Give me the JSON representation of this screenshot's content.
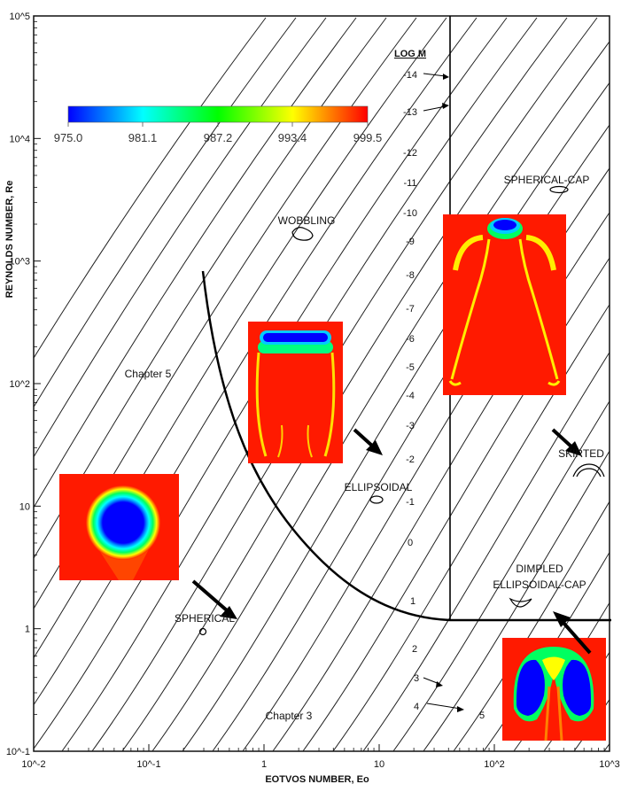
{
  "chart_data": {
    "type": "line",
    "xlabel": "EOTVOS NUMBER, Eo",
    "ylabel": "REYNOLDS NUMBER, Re",
    "x_scale": "log",
    "y_scale": "log",
    "xlim": [
      0.01,
      1000
    ],
    "ylim": [
      0.1,
      100000
    ],
    "x_tick_labels": [
      "10^-2",
      "10^-1",
      "1",
      "10",
      "10^2",
      "10^3"
    ],
    "y_tick_labels": [
      "10^-1",
      "1",
      "10",
      "10^2",
      "10^3",
      "10^4",
      "10^5"
    ],
    "log_m_header": "LOG M",
    "log_m_labels": [
      "-14",
      "-13",
      "-12",
      "-11",
      "-10",
      "-9",
      "-8",
      "-7",
      "-6",
      "-5",
      "-4",
      "-3",
      "-2",
      "-1",
      "0",
      "1",
      "2",
      "3",
      "4",
      "5"
    ],
    "regime_labels": [
      "SPHERICAL-CAP",
      "WOBBLING",
      "SKIRTED",
      "ELLIPSOIDAL",
      "DIMPLED",
      "ELLIPSOIDAL-CAP",
      "SPHERICAL",
      "Chapter 5",
      "Chapter 3"
    ],
    "colorbar": {
      "ticks": [
        "975.0",
        "981.1",
        "987.2",
        "993.4",
        "999.5"
      ],
      "colors": [
        "#0000ff",
        "#00ffff",
        "#00ff00",
        "#ffff00",
        "#ff0000"
      ]
    },
    "boundaries": {
      "curved": [
        [
          0.4,
          800
        ],
        [
          0.6,
          90
        ],
        [
          1,
          25
        ],
        [
          2,
          6
        ],
        [
          5,
          2
        ],
        [
          10,
          1.5
        ],
        [
          30,
          1.25
        ],
        [
          40,
          1.2
        ],
        [
          1000,
          1.2
        ]
      ],
      "vertical_eo": 40
    },
    "grid": false,
    "legend": "none"
  }
}
